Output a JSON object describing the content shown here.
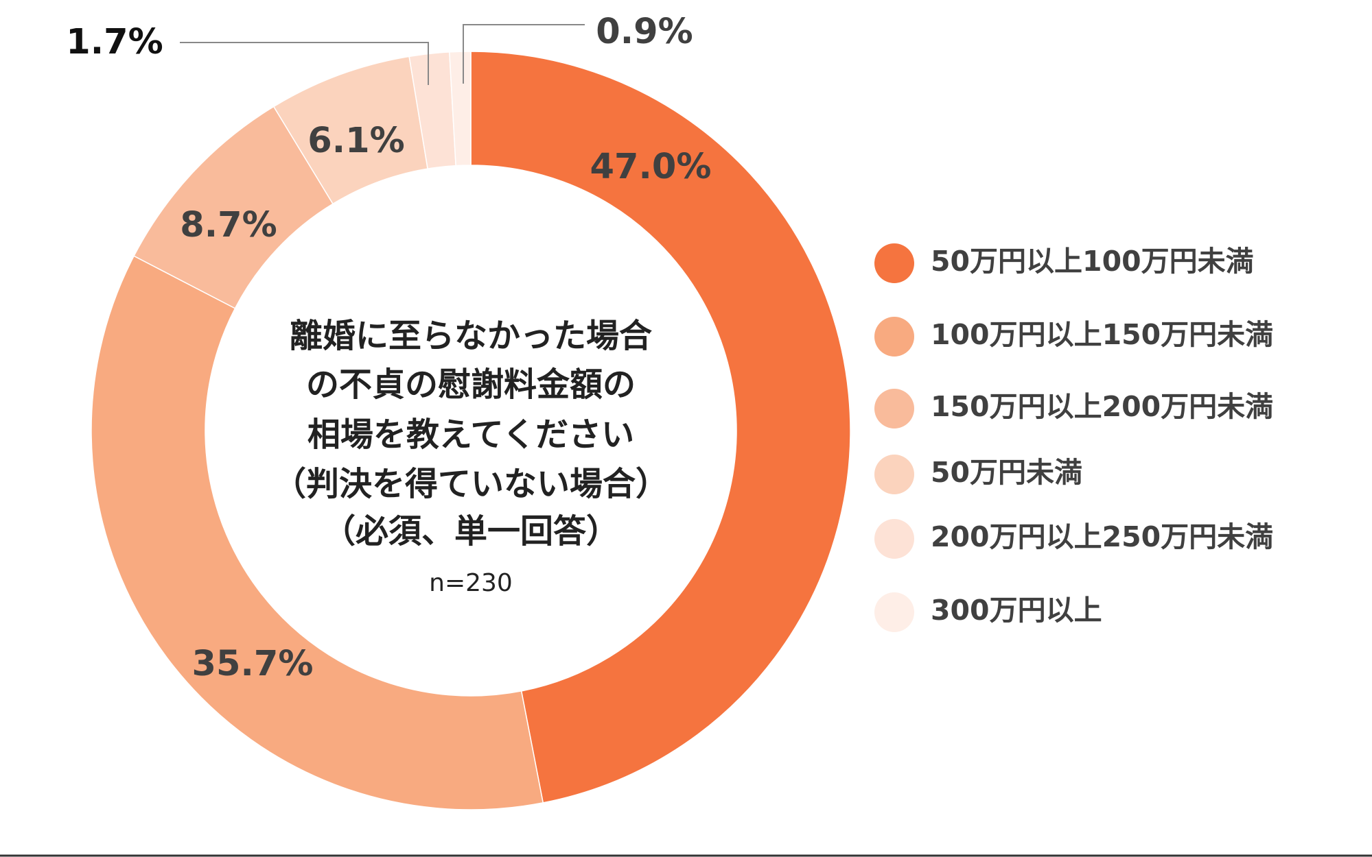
{
  "chart_data": {
    "type": "pie",
    "title": [
      "離婚に至らなかった場合",
      "の不貞の慰謝料金額の",
      "相場を教えてください",
      "（判決を得ていない場合）",
      "（必須、単一回答）"
    ],
    "subtitle": "n=230",
    "categories": [
      "50万円以上100万円未満",
      "100万円以上150万円未満",
      "150万円以上200万円未満",
      "50万円未満",
      "200万円以上250万円未満",
      "300万円以上"
    ],
    "values": [
      47.0,
      35.7,
      8.7,
      6.1,
      1.7,
      0.9
    ],
    "value_labels": [
      "47.0%",
      "35.7%",
      "8.7%",
      "6.1%",
      "1.7%",
      "0.9%"
    ],
    "colors": [
      "#f5743f",
      "#f8aa80",
      "#f9bb9b",
      "#fbd3bd",
      "#fde2d6",
      "#feeee7"
    ],
    "legend": "right"
  }
}
